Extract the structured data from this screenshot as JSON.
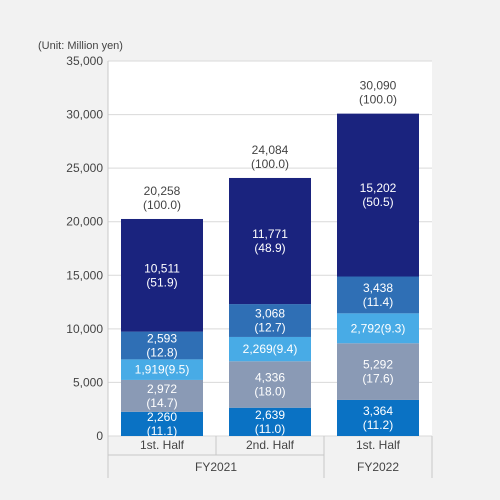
{
  "chart_data": {
    "type": "bar",
    "stacked": true,
    "unit_label": "(Unit: Million yen)",
    "ylim": [
      0,
      35000
    ],
    "yticks": [
      "0",
      "5,000",
      "10,000",
      "15,000",
      "20,000",
      "25,000",
      "30,000",
      "35,000"
    ],
    "ytick_values": [
      0,
      5000,
      10000,
      15000,
      20000,
      25000,
      30000,
      35000
    ],
    "categories": [
      "1st. Half",
      "2nd. Half",
      "1st. Half"
    ],
    "groups": [
      {
        "label": "FY2021",
        "span": [
          0,
          1
        ]
      },
      {
        "label": "FY2022",
        "span": [
          2,
          2
        ]
      }
    ],
    "totals": [
      {
        "value": 20258,
        "text": "20,258",
        "pct": "(100.0)"
      },
      {
        "value": 24084,
        "text": "24,084",
        "pct": "(100.0)"
      },
      {
        "value": 30090,
        "text": "30,090",
        "pct": "(100.0)"
      }
    ],
    "series": [
      {
        "color": "#0a72c4",
        "values": [
          2260,
          2639,
          3364
        ],
        "labels": [
          [
            "2,260",
            "(11.1)"
          ],
          [
            "2,639",
            "(11.0)"
          ],
          [
            "3,364",
            "(11.2)"
          ]
        ]
      },
      {
        "color": "#8a9ab5",
        "values": [
          2972,
          4336,
          5292
        ],
        "labels": [
          [
            "2,972",
            "(14.7)"
          ],
          [
            "4,336",
            "(18.0)"
          ],
          [
            "5,292",
            "(17.6)"
          ]
        ]
      },
      {
        "color": "#48abe6",
        "values": [
          1919,
          2269,
          2792
        ],
        "labels": [
          [
            "1,919(9.5)"
          ],
          [
            "2,269(9.4)"
          ],
          [
            "2,792(9.3)"
          ]
        ]
      },
      {
        "color": "#2f6fb5",
        "values": [
          2593,
          3068,
          3438
        ],
        "labels": [
          [
            "2,593",
            "(12.8)"
          ],
          [
            "3,068",
            "(12.7)"
          ],
          [
            "3,438",
            "(11.4)"
          ]
        ]
      },
      {
        "color": "#1a237e",
        "values": [
          10511,
          11771,
          15202
        ],
        "labels": [
          [
            "10,511",
            "(51.9)"
          ],
          [
            "11,771",
            "(48.9)"
          ],
          [
            "15,202",
            "(50.5)"
          ]
        ]
      }
    ],
    "grid": true,
    "colors": {
      "background": "#f2f2f2",
      "plot_background": "#ffffff",
      "grid": "#d9d9d9",
      "axis_text": "#444444"
    }
  }
}
